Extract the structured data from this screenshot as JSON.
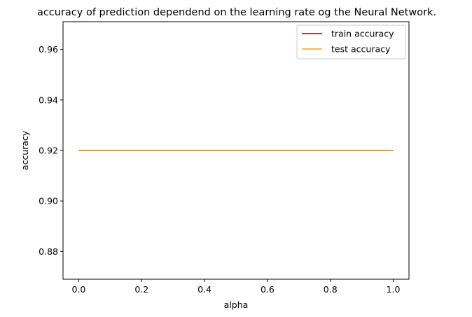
{
  "chart_data": {
    "type": "line",
    "title": "accuracy of prediction dependend on the learning rate og the Neural Network.",
    "xlabel": "alpha",
    "ylabel": "accuracy",
    "xlim": [
      -0.05,
      1.05
    ],
    "ylim": [
      0.869,
      0.971
    ],
    "xticks": [
      0.0,
      0.2,
      0.4,
      0.6,
      0.8,
      1.0
    ],
    "xtick_labels": [
      "0.0",
      "0.2",
      "0.4",
      "0.6",
      "0.8",
      "1.0"
    ],
    "yticks": [
      0.88,
      0.9,
      0.92,
      0.94,
      0.96
    ],
    "ytick_labels": [
      "0.88",
      "0.90",
      "0.92",
      "0.94",
      "0.96"
    ],
    "grid": false,
    "legend_position": "top-right",
    "series": [
      {
        "name": "train accuracy",
        "color": "#8b0000",
        "x": [
          0.0,
          1.0
        ],
        "y": [
          0.92,
          0.92
        ]
      },
      {
        "name": "test accuracy",
        "color": "#ffa500",
        "x": [
          0.0,
          1.0
        ],
        "y": [
          0.92,
          0.92
        ]
      }
    ]
  }
}
